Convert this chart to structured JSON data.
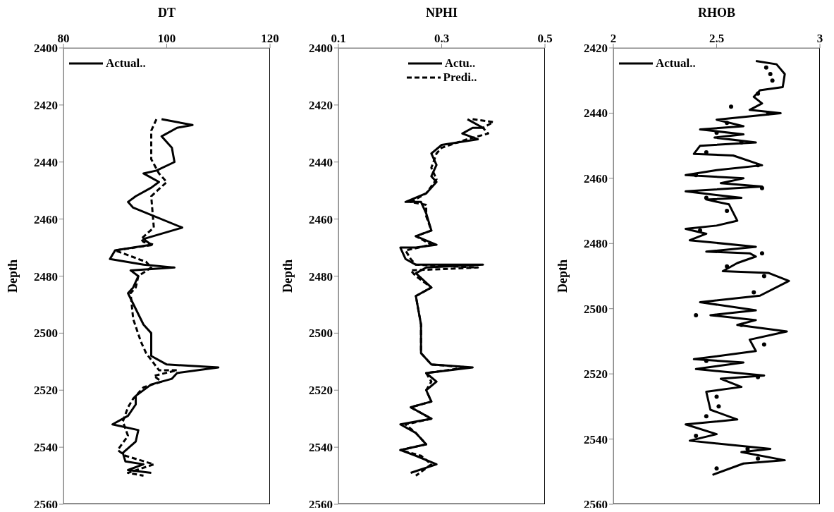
{
  "chart_data": [
    {
      "type": "line",
      "xlabel": "DT",
      "ylabel": "Depth",
      "xlim": [
        80,
        120
      ],
      "xticks": [
        80,
        100,
        120
      ],
      "ylim": [
        2560,
        2400
      ],
      "yticks": [
        2400,
        2420,
        2440,
        2460,
        2480,
        2500,
        2520,
        2540,
        2560
      ],
      "legend": "top left",
      "series": [
        {
          "name": "Actual..",
          "color": "#000000",
          "line_style": "solid",
          "x": [
            99,
            105,
            102,
            99,
            101,
            101.5,
            98,
            95.5,
            98.5,
            97,
            94,
            92.5,
            93.5,
            103,
            95.5,
            97,
            90,
            89,
            95.5,
            101.5,
            93,
            94.5,
            93.5,
            92.5,
            95.5,
            97,
            97,
            100,
            110,
            102,
            101,
            97,
            94,
            94,
            92.5,
            89.5,
            94.5,
            94,
            91.5,
            92,
            95.5,
            92.5,
            97
          ],
          "values": [
            2425,
            2427,
            2428,
            2431,
            2435,
            2440,
            2443,
            2444,
            2447,
            2449,
            2452,
            2454,
            2456,
            2463,
            2467,
            2469,
            2471,
            2474,
            2476,
            2477,
            2478,
            2480,
            2484,
            2486,
            2497,
            2500,
            2508,
            2511,
            2512,
            2514,
            2516,
            2518,
            2522,
            2525,
            2529,
            2532,
            2534,
            2538,
            2542,
            2545,
            2546,
            2548,
            2549
          ]
        },
        {
          "color": "#000000",
          "line_style": "dashed",
          "x": [
            98,
            97,
            97,
            97,
            98.5,
            100,
            97,
            97.5,
            95,
            95.5,
            97.5,
            90,
            96,
            97,
            94.5,
            94,
            93,
            93.5,
            95,
            96,
            98.5,
            102,
            97.5,
            99,
            95.5,
            93.5,
            92.5,
            91.5,
            92.5,
            90.5,
            92,
            97.5,
            92.5,
            95.5
          ],
          "values": [
            2425,
            2429,
            2433,
            2439,
            2444,
            2447,
            2452,
            2463,
            2467,
            2468,
            2469,
            2471,
            2475,
            2477,
            2480,
            2484,
            2486,
            2495,
            2503,
            2507,
            2513,
            2513,
            2515,
            2517,
            2519,
            2523,
            2526,
            2531,
            2536,
            2541,
            2543,
            2546,
            2549,
            2550
          ]
        }
      ]
    },
    {
      "type": "line",
      "xlabel": "NPHI",
      "ylabel": "Depth",
      "xlim": [
        0.1,
        0.5
      ],
      "xticks": [
        0.1,
        0.3,
        0.5
      ],
      "ylim": [
        2560,
        2400
      ],
      "yticks": [
        2400,
        2420,
        2440,
        2460,
        2480,
        2500,
        2520,
        2540,
        2560
      ],
      "legend": "top",
      "series": [
        {
          "name": "Actu..",
          "color": "#000000",
          "line_style": "solid",
          "x": [
            0.35,
            0.38,
            0.36,
            0.34,
            0.37,
            0.3,
            0.28,
            0.29,
            0.28,
            0.29,
            0.27,
            0.23,
            0.26,
            0.27,
            0.28,
            0.25,
            0.29,
            0.25,
            0.22,
            0.23,
            0.25,
            0.38,
            0.27,
            0.25,
            0.28,
            0.25,
            0.26,
            0.26,
            0.28,
            0.36,
            0.27,
            0.29,
            0.27,
            0.28,
            0.24,
            0.28,
            0.22,
            0.25,
            0.27,
            0.22,
            0.25,
            0.29,
            0.24
          ],
          "values": [
            2425,
            2428,
            2428,
            2430,
            2432,
            2434,
            2437,
            2441,
            2445,
            2447,
            2451,
            2454,
            2454,
            2458,
            2464,
            2466,
            2469,
            2470,
            2470,
            2474,
            2476,
            2476,
            2477,
            2479,
            2484,
            2487,
            2497,
            2507,
            2511,
            2512,
            2514,
            2517,
            2520,
            2524,
            2526,
            2530,
            2532,
            2535,
            2539,
            2541,
            2543,
            2546,
            2549
          ]
        },
        {
          "name": "Predi..",
          "color": "#000000",
          "line_style": "dashed",
          "x": [
            0.36,
            0.4,
            0.38,
            0.39,
            0.35,
            0.3,
            0.29,
            0.28,
            0.29,
            0.27,
            0.24,
            0.27,
            0.27,
            0.28,
            0.25,
            0.28,
            0.23,
            0.24,
            0.25,
            0.37,
            0.24,
            0.25,
            0.28,
            0.25,
            0.26,
            0.26,
            0.28,
            0.35,
            0.27,
            0.28,
            0.27,
            0.28,
            0.24,
            0.28,
            0.23,
            0.25,
            0.27,
            0.22,
            0.26,
            0.28,
            0.25
          ],
          "values": [
            2425,
            2426,
            2428,
            2430,
            2432,
            2435,
            2437,
            2442,
            2446,
            2451,
            2454,
            2455,
            2459,
            2464,
            2466,
            2469,
            2471,
            2474,
            2476,
            2477,
            2478,
            2480,
            2484,
            2487,
            2497,
            2507,
            2511,
            2512,
            2514,
            2517,
            2520,
            2524,
            2526,
            2530,
            2532,
            2535,
            2539,
            2541,
            2543,
            2546,
            2550
          ]
        }
      ]
    },
    {
      "type": "line",
      "xlabel": "RHOB",
      "ylabel": "Depth",
      "xlim": [
        2,
        3
      ],
      "xticks": [
        2,
        2.5,
        3
      ],
      "ylim": [
        2560,
        2420
      ],
      "yticks": [
        2420,
        2440,
        2460,
        2480,
        2500,
        2520,
        2540,
        2560
      ],
      "legend": "top left",
      "series": [
        {
          "name": "Actual..",
          "color": "#000000",
          "line_style": "solid",
          "x": [
            2.69,
            2.79,
            2.83,
            2.82,
            2.71,
            2.68,
            2.72,
            2.66,
            2.81,
            2.5,
            2.63,
            2.42,
            2.63,
            2.49,
            2.69,
            2.42,
            2.39,
            2.58,
            2.72,
            2.5,
            2.35,
            2.63,
            2.52,
            2.72,
            2.35,
            2.62,
            2.45,
            2.56,
            2.6,
            2.5,
            2.35,
            2.45,
            2.37,
            2.69,
            2.45,
            2.66,
            2.69,
            2.6,
            2.53,
            2.75,
            2.85,
            2.71,
            2.42,
            2.69,
            2.47,
            2.69,
            2.6,
            2.84,
            2.66,
            2.69,
            2.39,
            2.63,
            2.4,
            2.73,
            2.52,
            2.62,
            2.45,
            2.47,
            2.6,
            2.35,
            2.5,
            2.37,
            2.76,
            2.62,
            2.83,
            2.63,
            2.48
          ],
          "values": [
            2424,
            2425,
            2428,
            2432,
            2433,
            2435,
            2437,
            2439,
            2440,
            2442,
            2444,
            2445,
            2446.5,
            2447.5,
            2449,
            2450,
            2452.5,
            2453,
            2456,
            2457.5,
            2459,
            2460,
            2461.5,
            2462.5,
            2464,
            2466,
            2466.5,
            2468,
            2473,
            2474.5,
            2475.5,
            2477,
            2479,
            2481,
            2482.5,
            2483,
            2484,
            2486,
            2488.5,
            2489,
            2491.5,
            2496,
            2498,
            2500.5,
            2502,
            2503.5,
            2505,
            2507,
            2509.5,
            2513,
            2515.5,
            2516.5,
            2518.5,
            2520.5,
            2521.5,
            2524,
            2525.5,
            2531,
            2534,
            2535.5,
            2538.5,
            2540.5,
            2543,
            2544,
            2546.5,
            2547.5,
            2551
          ]
        },
        {
          "type": "scatter",
          "marker": "circle",
          "color": "#000000",
          "x": [
            2.74,
            2.76,
            2.77,
            2.7,
            2.57,
            2.75,
            2.55,
            2.5,
            2.62,
            2.45,
            2.7,
            2.4,
            2.72,
            2.45,
            2.55,
            2.42,
            2.72,
            2.55,
            2.73,
            2.68,
            2.4,
            2.62,
            2.73,
            2.45,
            2.7,
            2.5,
            2.51,
            2.45,
            2.4,
            2.65,
            2.7,
            2.5
          ],
          "values": [
            2426,
            2428,
            2430,
            2434,
            2438,
            2440,
            2443,
            2446,
            2449,
            2452,
            2456,
            2459,
            2463,
            2466,
            2470,
            2476,
            2483,
            2487,
            2490,
            2495,
            2502,
            2505,
            2511,
            2516,
            2521,
            2527,
            2530,
            2533,
            2539,
            2543,
            2546,
            2549
          ]
        }
      ]
    }
  ]
}
